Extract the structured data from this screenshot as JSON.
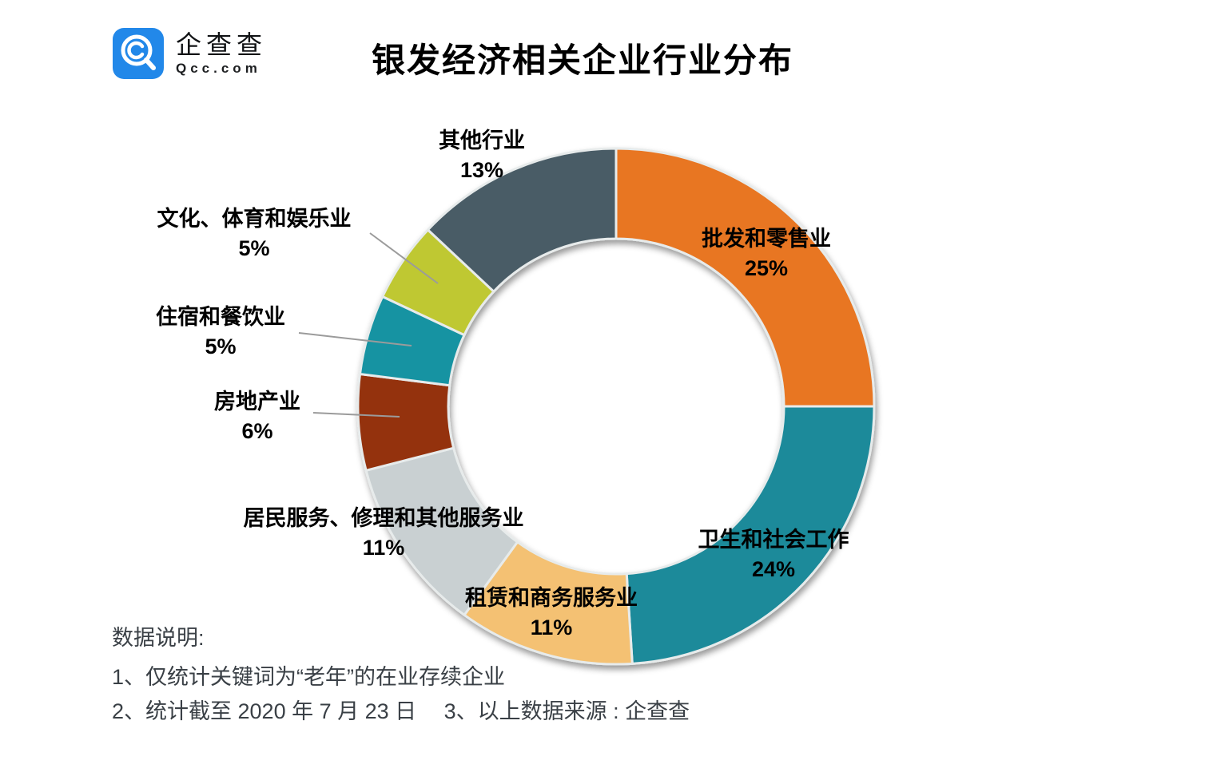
{
  "logo": {
    "name": "企查查",
    "domain": "Qcc.com"
  },
  "title": "银发经济相关企业行业分布",
  "chart_data": {
    "type": "pie",
    "subtype": "donut",
    "title": "银发经济相关企业行业分布",
    "unit": "%",
    "legend_position": "labels-around-donut",
    "slices": [
      {
        "name": "批发和零售业",
        "value": 25,
        "percent_label": "25%",
        "color": "#E87622"
      },
      {
        "name": "卫生和社会工作",
        "value": 24,
        "percent_label": "24%",
        "color": "#1B8A9A"
      },
      {
        "name": "租赁和商务服务业",
        "value": 11,
        "percent_label": "11%",
        "color": "#F4C173"
      },
      {
        "name": "居民服务、修理和其他服务业",
        "value": 11,
        "percent_label": "11%",
        "color": "#C9D0D2"
      },
      {
        "name": "房地产业",
        "value": 6,
        "percent_label": "6%",
        "color": "#94310F"
      },
      {
        "name": "住宿和餐饮业",
        "value": 5,
        "percent_label": "5%",
        "color": "#1893A2"
      },
      {
        "name": "文化、体育和娱乐业",
        "value": 5,
        "percent_label": "5%",
        "color": "#BFC832"
      },
      {
        "name": "其他行业",
        "value": 13,
        "percent_label": "13%",
        "color": "#4A5B66"
      }
    ]
  },
  "notes": {
    "heading": "数据说明:",
    "line1": "1、仅统计关键词为“老年”的在业存续企业",
    "line2": "2、统计截至 2020 年 7 月 23 日　 3、以上数据来源 : 企查查"
  },
  "colors": {
    "brand_blue": "#2288E9",
    "leader_line": "#9B9B9B",
    "note_text": "#3A4046"
  }
}
